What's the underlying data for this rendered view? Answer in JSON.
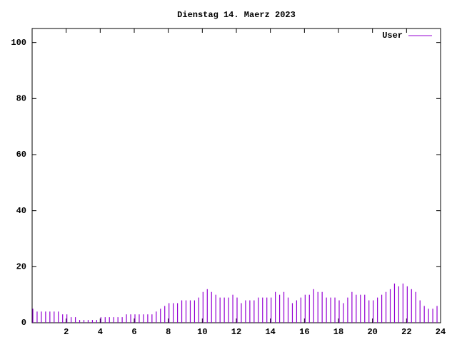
{
  "chart_data": {
    "type": "impulse",
    "title": "Dienstag 14. Maerz 2023",
    "x": [
      0,
      0.25,
      0.5,
      0.75,
      1,
      1.25,
      1.5,
      1.75,
      2,
      2.25,
      2.5,
      2.75,
      3,
      3.25,
      3.5,
      3.75,
      4,
      4.25,
      4.5,
      4.75,
      5,
      5.25,
      5.5,
      5.75,
      6,
      6.25,
      6.5,
      6.75,
      7,
      7.25,
      7.5,
      7.75,
      8,
      8.25,
      8.5,
      8.75,
      9,
      9.25,
      9.5,
      9.75,
      10,
      10.25,
      10.5,
      10.75,
      11,
      11.25,
      11.5,
      11.75,
      12,
      12.25,
      12.5,
      12.75,
      13,
      13.25,
      13.5,
      13.75,
      14,
      14.25,
      14.5,
      14.75,
      15,
      15.25,
      15.5,
      15.75,
      16,
      16.25,
      16.5,
      16.75,
      17,
      17.25,
      17.5,
      17.75,
      18,
      18.25,
      18.5,
      18.75,
      19,
      19.25,
      19.5,
      19.75,
      20,
      20.25,
      20.5,
      20.75,
      21,
      21.25,
      21.5,
      21.75,
      22,
      22.25,
      22.5,
      22.75,
      23,
      23.25,
      23.5,
      23.75
    ],
    "series": [
      {
        "name": "User",
        "color": "#9400d3",
        "values": [
          5,
          4,
          4,
          4,
          4,
          4,
          4,
          3,
          3,
          2,
          2,
          1,
          1,
          1,
          1,
          1,
          2,
          2,
          2,
          2,
          2,
          2,
          3,
          3,
          3,
          3,
          3,
          3,
          3,
          4,
          5,
          6,
          7,
          7,
          7,
          8,
          8,
          8,
          8,
          9,
          11,
          12,
          11,
          10,
          9,
          9,
          9,
          10,
          9,
          7,
          8,
          8,
          8,
          9,
          9,
          9,
          9,
          11,
          10,
          11,
          9,
          7,
          8,
          9,
          10,
          10,
          12,
          11,
          11,
          9,
          9,
          9,
          8,
          7,
          9,
          11,
          10,
          10,
          10,
          8,
          8,
          9,
          10,
          11,
          12,
          14,
          13,
          14,
          13,
          12,
          11,
          8,
          6,
          5,
          5,
          6
        ]
      }
    ],
    "xlim": [
      0,
      24
    ],
    "xticks": [
      2,
      4,
      6,
      8,
      10,
      12,
      14,
      16,
      18,
      20,
      22,
      24
    ],
    "ylim": [
      0,
      105
    ],
    "yticks": [
      0,
      20,
      40,
      60,
      80,
      100
    ],
    "legend": "top-right"
  }
}
